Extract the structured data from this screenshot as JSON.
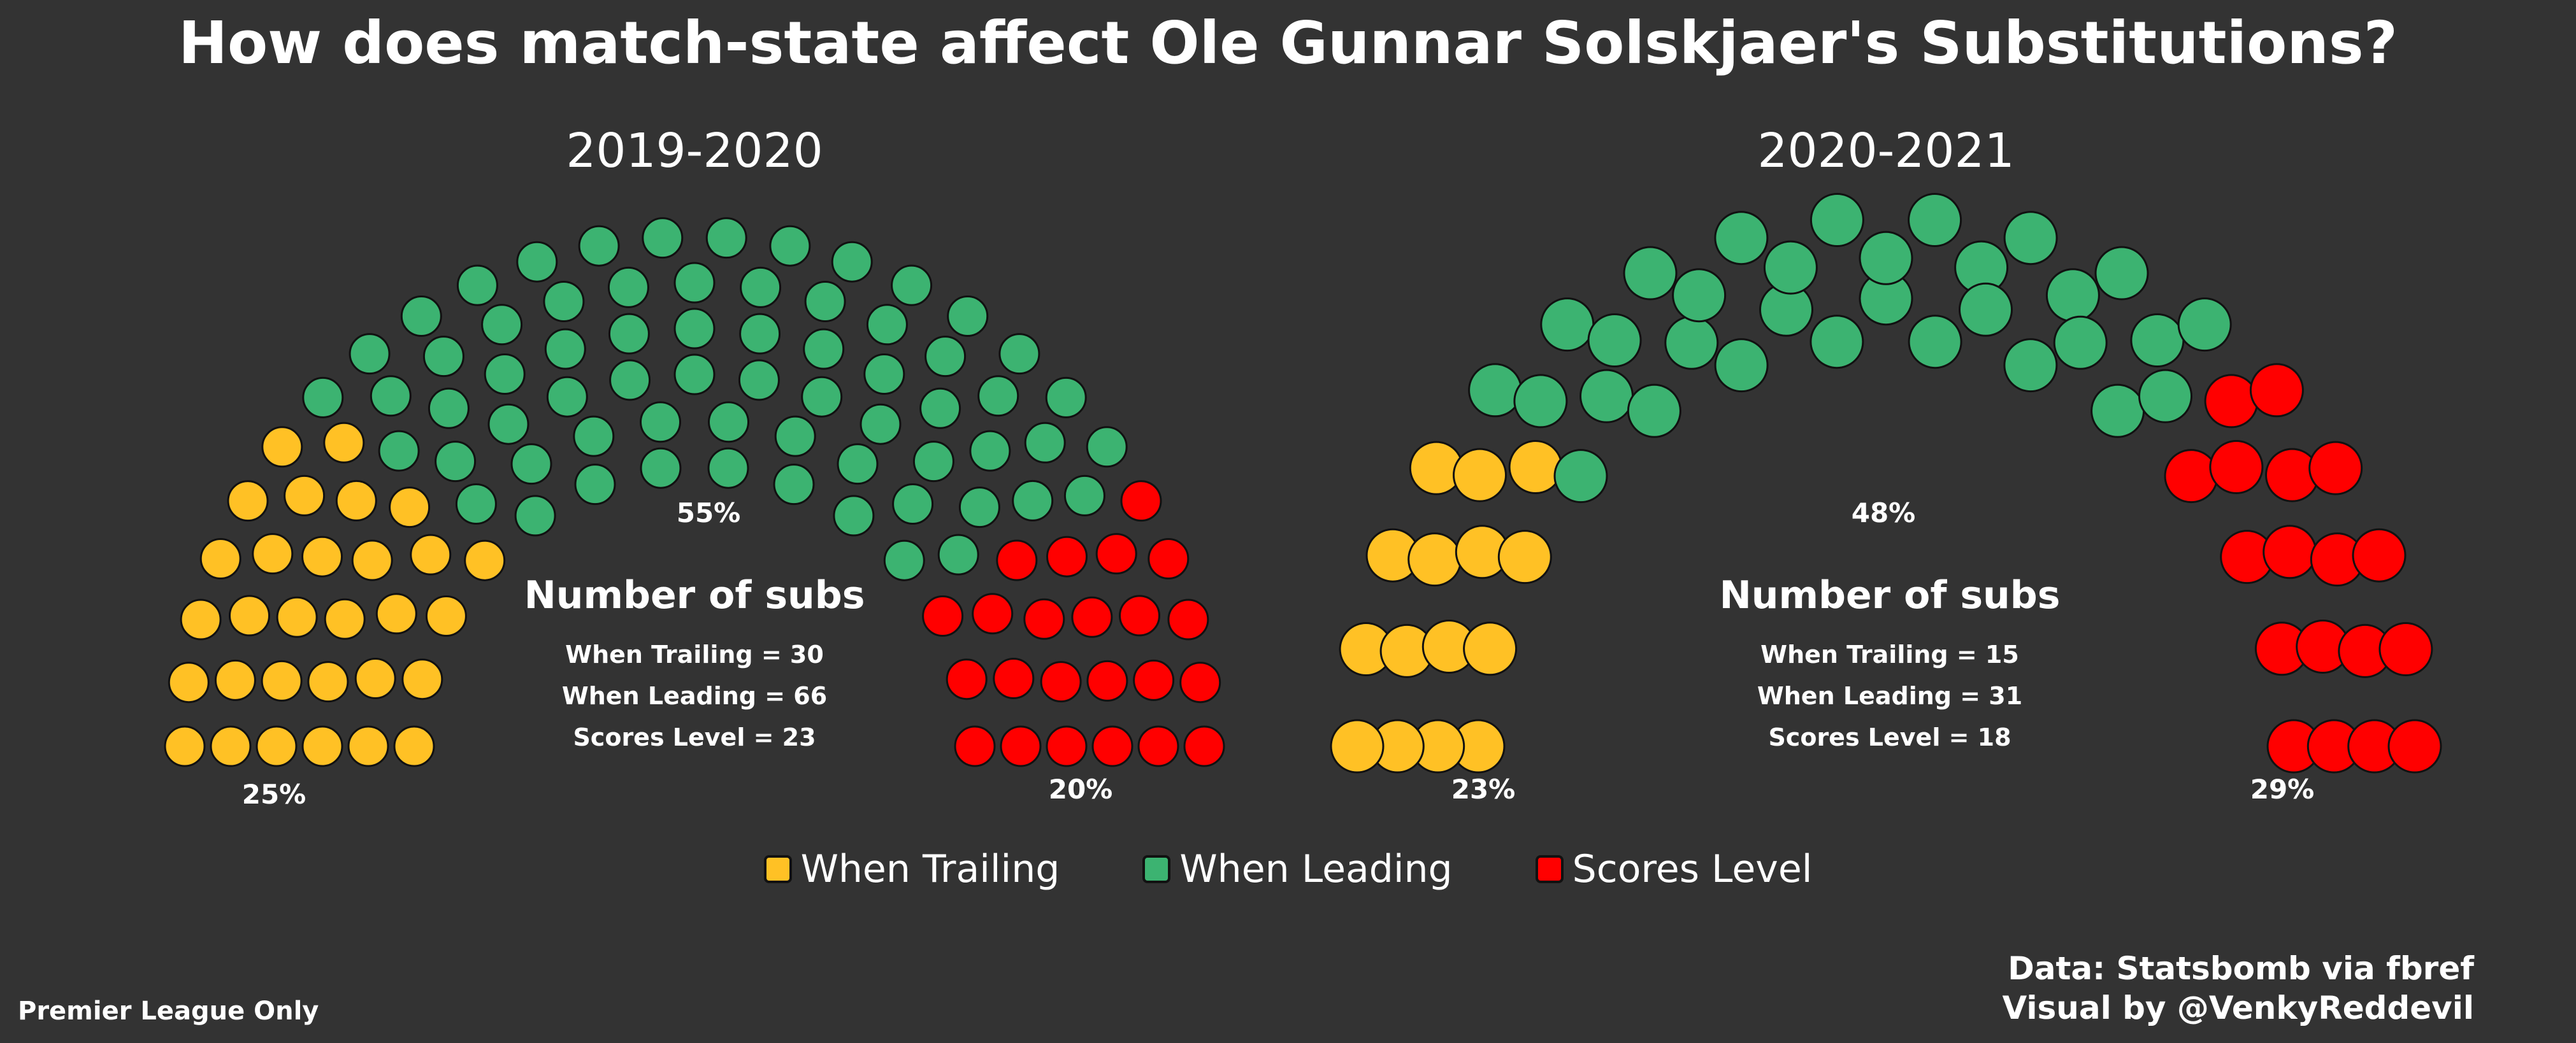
{
  "title": "How does match-state affect Ole Gunnar Solskjaer's Substitutions?",
  "colors": {
    "trailing": "#FFC125",
    "leading": "#3CB371",
    "level": "#FF0000",
    "background": "#333333",
    "seat_stroke": "#111111"
  },
  "legend": [
    {
      "name": "When Trailing",
      "color": "#FFC125"
    },
    {
      "name": "When Leading",
      "color": "#3CB371"
    },
    {
      "name": "Scores Level",
      "color": "#FF0000"
    }
  ],
  "chart_data": [
    {
      "type": "parliament",
      "title": "2019-2020",
      "panel_title": "Number of subs",
      "categories": [
        "When Trailing",
        "When Leading",
        "Scores Level"
      ],
      "values": [
        30,
        66,
        23
      ],
      "percent_labels": [
        "25%",
        "55%",
        "20%"
      ],
      "summary_lines": [
        "When Trailing = 30",
        "When Leading = 66",
        "Scores Level = 23"
      ]
    },
    {
      "type": "parliament",
      "title": "2020-2021",
      "panel_title": "Number of subs",
      "categories": [
        "When Trailing",
        "When Leading",
        "Scores Level"
      ],
      "values": [
        15,
        31,
        18
      ],
      "percent_labels": [
        "23%",
        "48%",
        "29%"
      ],
      "summary_lines": [
        "When Trailing = 15",
        "When Leading = 31",
        "Scores Level = 18"
      ]
    }
  ],
  "footnote": "Premier League Only",
  "credits": [
    "Data: Statsbomb via fbref",
    "Visual by @VenkyReddevil"
  ]
}
